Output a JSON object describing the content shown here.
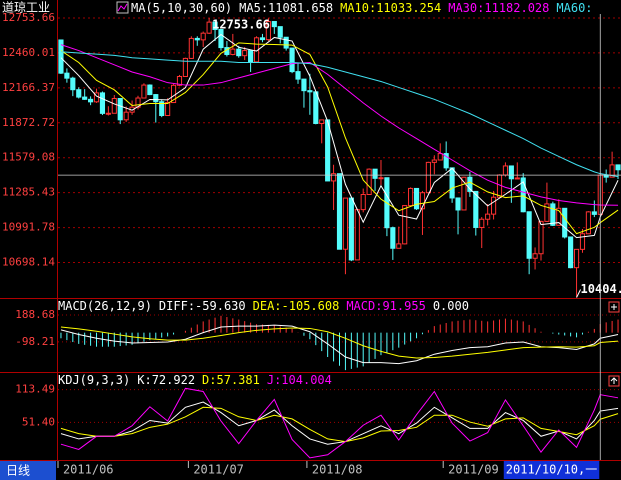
{
  "chart_data": [
    {
      "type": "candlestick",
      "title": "道琼工业",
      "indicator": "MA(5,10,30,60)",
      "period": "日线",
      "up_color": "#ff3232",
      "down_color": "#54fcfc",
      "categories": [
        "2011/06",
        null,
        null,
        null,
        null,
        null,
        null,
        null,
        null,
        null,
        null,
        null,
        null,
        null,
        null,
        null,
        null,
        null,
        null,
        null,
        null,
        null,
        "2011/07",
        null,
        null,
        null,
        null,
        null,
        null,
        null,
        null,
        null,
        null,
        null,
        null,
        null,
        null,
        null,
        null,
        null,
        null,
        null,
        "2011/08",
        null,
        null,
        null,
        null,
        null,
        null,
        null,
        null,
        null,
        null,
        null,
        null,
        null,
        null,
        null,
        null,
        null,
        null,
        null,
        null,
        null,
        null,
        "2011/09",
        null,
        null,
        null,
        null,
        null,
        null,
        null,
        null,
        null,
        null,
        null,
        null,
        null,
        null,
        null,
        null,
        null,
        null,
        null,
        null,
        null,
        null,
        null,
        null,
        null,
        "2011/10/10,一",
        null,
        null,
        null
      ],
      "open": [
        12569,
        12290,
        12248,
        12151,
        12089,
        12070,
        12049,
        12124,
        11952,
        11953,
        12077,
        11898,
        11962,
        12004,
        12081,
        12190,
        12110,
        12050,
        11934,
        12043,
        12188,
        12262,
        12414,
        12582,
        12570,
        12626,
        12719,
        12657,
        12505,
        12447,
        12492,
        12437,
        12480,
        12385,
        12587,
        12572,
        12724,
        12681,
        12592,
        12501,
        12303,
        12240,
        12143,
        12133,
        11867,
        11897,
        11384,
        11445,
        10810,
        11240,
        10720,
        11143,
        11270,
        11483,
        11406,
        11411,
        10991,
        10818,
        10855,
        11177,
        11321,
        11150,
        11285,
        11540,
        11560,
        11614,
        11494,
        11241,
        11140,
        11415,
        11296,
        10993,
        11062,
        11105,
        11247,
        11434,
        11510,
        11402,
        11409,
        11125,
        10734,
        10772,
        11044,
        11191,
        11011,
        11154,
        10913,
        10655,
        10809,
        10940,
        11124,
        11103,
        11433,
        11416,
        11519
      ],
      "high": [
        12570,
        12330,
        12260,
        12171,
        12156,
        12095,
        12160,
        12136,
        12012,
        12106,
        12077,
        12010,
        12060,
        12100,
        12205,
        12196,
        12115,
        12070,
        12080,
        12200,
        12275,
        12420,
        12600,
        12600,
        12640,
        12753.66,
        12720,
        12657,
        12560,
        12620,
        12520,
        12510,
        12480,
        12600,
        12620,
        12751,
        12725,
        12681,
        12592,
        12501,
        12380,
        12240,
        12285,
        12133,
        11900,
        11897,
        11520,
        11445,
        11240,
        11240,
        11150,
        11320,
        11490,
        11483,
        11560,
        11411,
        11000,
        11000,
        11180,
        11330,
        11320,
        11300,
        11545,
        11600,
        11700,
        11716,
        11494,
        11241,
        11420,
        11460,
        11296,
        11080,
        11190,
        11300,
        11440,
        11540,
        11510,
        11540,
        11450,
        11125,
        10825,
        11050,
        11370,
        11210,
        11230,
        11154,
        10915,
        10810,
        10980,
        11130,
        11220,
        11440,
        11480,
        11630,
        11519
      ],
      "low": [
        12283,
        12210,
        12097,
        12077,
        12066,
        12021,
        12040,
        11938,
        11934,
        11953,
        11862,
        11880,
        11940,
        11985,
        12080,
        12105,
        11875,
        11920,
        11930,
        12040,
        12180,
        12260,
        12410,
        12520,
        12510,
        12620,
        12560,
        12480,
        12430,
        12440,
        12420,
        12400,
        12300,
        12380,
        12550,
        12560,
        12620,
        12540,
        12480,
        12290,
        12200,
        12000,
        11940,
        11860,
        11700,
        11383,
        11140,
        10809,
        10600,
        10710,
        10720,
        11120,
        11270,
        11300,
        11350,
        10920,
        10720,
        10820,
        10850,
        11170,
        11140,
        10930,
        11280,
        11440,
        11560,
        11470,
        11200,
        10935,
        11140,
        11250,
        10925,
        10820,
        11010,
        11060,
        11240,
        11420,
        11200,
        11400,
        11120,
        10600,
        10640,
        10715,
        11040,
        11005,
        11010,
        10900,
        10650,
        10404.49,
        10780,
        10940,
        11080,
        11103,
        11370,
        11416,
        11400
      ],
      "close": [
        12290,
        12248,
        12151,
        12089,
        12070,
        12049,
        12124,
        11952,
        11953,
        12077,
        11898,
        11962,
        12004,
        12081,
        12190,
        12110,
        12050,
        11934,
        12043,
        12188,
        12262,
        12414,
        12582,
        12570,
        12626,
        12719,
        12657,
        12505,
        12447,
        12492,
        12437,
        12480,
        12385,
        12587,
        12572,
        12724,
        12681,
        12592,
        12501,
        12303,
        12240,
        12143,
        12133,
        11867,
        11897,
        11384,
        11445,
        10810,
        11240,
        10720,
        11143,
        11270,
        11483,
        11406,
        11411,
        10991,
        10818,
        10855,
        11177,
        11321,
        11150,
        11285,
        11540,
        11560,
        11614,
        11494,
        11241,
        11140,
        11415,
        11296,
        10993,
        11062,
        11105,
        11247,
        11434,
        11510,
        11402,
        11409,
        11125,
        10734,
        10772,
        11044,
        11191,
        11011,
        11154,
        10913,
        10655,
        10809,
        10940,
        11124,
        11103,
        11433,
        11416,
        11519,
        11478
      ],
      "x": [
        0,
        3,
        6,
        9,
        12,
        15,
        18,
        21,
        24,
        27,
        30,
        33,
        36,
        39,
        42,
        45,
        48,
        51,
        54,
        57,
        60,
        63,
        66,
        69,
        72,
        75,
        78,
        81,
        84,
        87,
        90,
        91,
        94
      ],
      "series": [
        {
          "name": "MA5",
          "legend": "MA5:11081.658",
          "color": "#ffffff",
          "values": [
            12420,
            12270,
            12097,
            12031,
            11979,
            12069,
            12065,
            12168,
            12491,
            12615,
            12508,
            12476,
            12590,
            12560,
            12264,
            11885,
            11355,
            11037,
            11343,
            11096,
            11064,
            11371,
            11490,
            11317,
            11174,
            11272,
            11376,
            11017,
            11034,
            10908,
            10926,
            11081.658,
            11390
          ]
        },
        {
          "name": "MA10",
          "legend": "MA10:11033.254",
          "color": "#ffff00",
          "values": [
            12480,
            12380,
            12230,
            12150,
            12018,
            12035,
            12035,
            12128,
            12278,
            12457,
            12545,
            12534,
            12531,
            12526,
            12448,
            12174,
            11746,
            11391,
            11231,
            11134,
            11188,
            11211,
            11324,
            11374,
            11292,
            11244,
            11258,
            11178,
            11135,
            10941,
            10994,
            11033.254,
            11139
          ]
        },
        {
          "name": "MA30",
          "legend": "MA30:11182.028",
          "color": "#ff00ff",
          "values": [
            12530,
            12480,
            12420,
            12360,
            12300,
            12260,
            12210,
            12190,
            12190,
            12210,
            12250,
            12290,
            12330,
            12370,
            12380,
            12280,
            12160,
            12040,
            11930,
            11830,
            11740,
            11650,
            11560,
            11470,
            11390,
            11330,
            11290,
            11250,
            11220,
            11200,
            11185,
            11182.028,
            11180
          ]
        },
        {
          "name": "MA60",
          "legend": "MA60:",
          "color": "#40e0f0",
          "values": [
            12470,
            12460,
            12450,
            12440,
            12420,
            12410,
            12400,
            12390,
            12390,
            12390,
            12380,
            12380,
            12380,
            12380,
            12370,
            12340,
            12300,
            12260,
            12220,
            12170,
            12120,
            12070,
            12010,
            11950,
            11880,
            11810,
            11740,
            11660,
            11590,
            11520,
            11460,
            11445,
            11420
          ]
        }
      ],
      "ylim": [
        10400,
        12905
      ],
      "yticks": [
        12753.66,
        12460.01,
        12166.37,
        11872.72,
        11579.08,
        11285.43,
        10991.78,
        10698.14
      ],
      "grid": true
    },
    {
      "type": "macd",
      "title": "MACD(26,12,9)",
      "extra_text": "0.000",
      "x": [
        0,
        3,
        6,
        9,
        12,
        15,
        18,
        21,
        24,
        27,
        30,
        33,
        36,
        39,
        42,
        45,
        48,
        51,
        54,
        57,
        60,
        63,
        66,
        69,
        72,
        75,
        78,
        81,
        84,
        87,
        90,
        91,
        94
      ],
      "series": [
        {
          "name": "DIFF",
          "legend": "DIFF:-59.630",
          "color": "#ffffff",
          "values": [
            30,
            -20,
            -60,
            -90,
            -110,
            -105,
            -100,
            -70,
            0,
            60,
            70,
            70,
            80,
            70,
            10,
            -120,
            -260,
            -320,
            -320,
            -330,
            -300,
            -230,
            -190,
            -160,
            -150,
            -110,
            -100,
            -150,
            -160,
            -180,
            -120,
            -59.63,
            -20
          ]
        },
        {
          "name": "DEA",
          "legend": "DEA:-105.608",
          "color": "#ffff00",
          "values": [
            60,
            40,
            15,
            -15,
            -45,
            -65,
            -80,
            -80,
            -60,
            -30,
            0,
            25,
            40,
            50,
            45,
            10,
            -60,
            -140,
            -200,
            -250,
            -270,
            -265,
            -250,
            -230,
            -210,
            -185,
            -160,
            -155,
            -150,
            -155,
            -140,
            -105.608,
            -90
          ]
        }
      ],
      "histogram": {
        "legend": "MACD:91.955",
        "legend_color": "#ff00ff",
        "up_color": "#ff3232",
        "down_color": "#54fcfc",
        "values": [
          -60,
          -80,
          -100,
          -120,
          -130,
          -140,
          -150,
          -150,
          -150,
          -150,
          -143,
          -137,
          -130,
          -113,
          -97,
          -80,
          -67,
          -53,
          -40,
          -20,
          0,
          20,
          53,
          87,
          120,
          140,
          160,
          180,
          167,
          153,
          140,
          123,
          107,
          90,
          87,
          83,
          80,
          67,
          53,
          40,
          3,
          -33,
          -70,
          -133,
          -197,
          -260,
          -307,
          -353,
          -400,
          -387,
          -373,
          -360,
          -320,
          -280,
          -240,
          -213,
          -187,
          -160,
          -127,
          -93,
          -60,
          -17,
          27,
          70,
          87,
          103,
          120,
          127,
          133,
          140,
          133,
          127,
          120,
          130,
          140,
          150,
          140,
          130,
          120,
          83,
          47,
          10,
          0,
          -10,
          -20,
          -30,
          -40,
          -50,
          -20,
          10,
          40,
          91.955,
          110,
          125,
          140
        ]
      },
      "ylim": [
        -420,
        370
      ],
      "yticks": [
        188.68,
        -98.21
      ],
      "grid": true
    },
    {
      "type": "line",
      "title": "KDJ(9,3,3)",
      "x": [
        0,
        3,
        6,
        9,
        12,
        15,
        18,
        21,
        24,
        27,
        30,
        33,
        36,
        39,
        42,
        45,
        48,
        51,
        54,
        57,
        60,
        63,
        66,
        69,
        72,
        75,
        78,
        81,
        84,
        87,
        90,
        91,
        94
      ],
      "series": [
        {
          "name": "K",
          "legend": "K:72.922",
          "color": "#ffffff",
          "values": [
            30,
            20,
            25,
            25,
            35,
            55,
            50,
            80,
            90,
            70,
            45,
            55,
            75,
            45,
            20,
            10,
            15,
            30,
            45,
            30,
            50,
            80,
            60,
            40,
            40,
            70,
            55,
            25,
            35,
            20,
            55,
            72.922,
            78
          ]
        },
        {
          "name": "D",
          "legend": "D:57.381",
          "color": "#ffff00",
          "values": [
            40,
            30,
            25,
            25,
            30,
            42,
            48,
            62,
            80,
            78,
            62,
            55,
            65,
            58,
            38,
            20,
            15,
            22,
            35,
            36,
            42,
            65,
            65,
            52,
            44,
            58,
            60,
            40,
            34,
            28,
            45,
            57.381,
            68
          ]
        },
        {
          "name": "J",
          "legend": "J:104.004",
          "color": "#ff00ff",
          "values": [
            10,
            0,
            25,
            25,
            45,
            81,
            54,
            116,
            110,
            54,
            11,
            55,
            95,
            19,
            -16,
            -10,
            15,
            46,
            65,
            18,
            66,
            110,
            50,
            16,
            32,
            94,
            45,
            -5,
            37,
            4,
            75,
            104.004,
            98
          ]
        }
      ],
      "ylim": [
        -20,
        147
      ],
      "yticks": [
        113.49,
        {
          "value": 51.4,
          "label": "51.40"
        }
      ],
      "grid": true
    }
  ]
}
